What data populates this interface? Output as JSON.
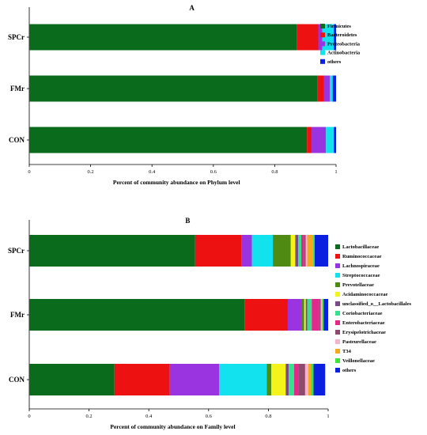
{
  "chart_data": [
    {
      "type": "bar",
      "orientation": "horizontal",
      "stacked": true,
      "panel_label": "A",
      "categories": [
        "SPCr",
        "FMr",
        "CON"
      ],
      "xlabel": "Percent of community abundance on Phylum level",
      "xlim": [
        0,
        1
      ],
      "xticks": [
        "0",
        "0.2",
        "0.4",
        "0.6",
        "0.8",
        "1"
      ],
      "legend_position": "right",
      "series": [
        {
          "name": "Firmicutes",
          "color": "#0b6b1c",
          "values": [
            0.872,
            0.94,
            0.905
          ]
        },
        {
          "name": "Bacteroidetes",
          "color": "#ee1111",
          "values": [
            0.07,
            0.02,
            0.015
          ]
        },
        {
          "name": "Proteobacteria",
          "color": "#9a34e0",
          "values": [
            0.013,
            0.02,
            0.047
          ]
        },
        {
          "name": "Actinobacteria",
          "color": "#12e2ee",
          "values": [
            0.038,
            0.009,
            0.026
          ]
        },
        {
          "name": "others",
          "color": "#0a1fe0",
          "values": [
            0.007,
            0.011,
            0.007
          ]
        }
      ]
    },
    {
      "type": "bar",
      "orientation": "horizontal",
      "stacked": true,
      "panel_label": "B",
      "categories": [
        "SPCr",
        "FMr",
        "CON"
      ],
      "xlabel": "Percent of community abundance on Family level",
      "xlim": [
        0,
        1
      ],
      "xticks": [
        "0",
        "0.2",
        "0.4",
        "0.6",
        "0.8",
        "1"
      ],
      "legend_position": "right",
      "series": [
        {
          "name": "Lactobacillaceae",
          "color": "#0b6b1c",
          "values": [
            0.555,
            0.72,
            0.285
          ]
        },
        {
          "name": "Ruminococcaceae",
          "color": "#ee1111",
          "values": [
            0.155,
            0.145,
            0.185
          ]
        },
        {
          "name": "Lachnospiraceae",
          "color": "#9a34e0",
          "values": [
            0.035,
            0.045,
            0.165
          ]
        },
        {
          "name": "Streptococcaceae",
          "color": "#12e2ee",
          "values": [
            0.07,
            0.0,
            0.16
          ]
        },
        {
          "name": "Prevotellaceae",
          "color": "#4f8a12",
          "values": [
            0.06,
            0.01,
            0.015
          ]
        },
        {
          "name": "Acidaminococcaceae",
          "color": "#f4f41a",
          "values": [
            0.015,
            0.005,
            0.048
          ]
        },
        {
          "name": "unclassified_o__Lactobacillales",
          "color": "#7a4a8e",
          "values": [
            0.01,
            0.005,
            0.01
          ]
        },
        {
          "name": "Coriobacteriaceae",
          "color": "#37e08c",
          "values": [
            0.01,
            0.015,
            0.018
          ]
        },
        {
          "name": "Enterobacteriaceae",
          "color": "#e0298a",
          "values": [
            0.01,
            0.025,
            0.015
          ]
        },
        {
          "name": "Erysipelotrichaceae",
          "color": "#8c4a6e",
          "values": [
            0.005,
            0.005,
            0.022
          ]
        },
        {
          "name": "Pasteurellaceae",
          "color": "#f7b3cc",
          "values": [
            0.005,
            0.005,
            0.01
          ]
        },
        {
          "name": "T34",
          "color": "#f5a623",
          "values": [
            0.02,
            0.0,
            0.01
          ]
        },
        {
          "name": "Veillonellaceae",
          "color": "#3ee33e",
          "values": [
            0.005,
            0.005,
            0.008
          ]
        },
        {
          "name": "others",
          "color": "#0a1fe0",
          "values": [
            0.045,
            0.015,
            0.039
          ]
        }
      ]
    }
  ]
}
